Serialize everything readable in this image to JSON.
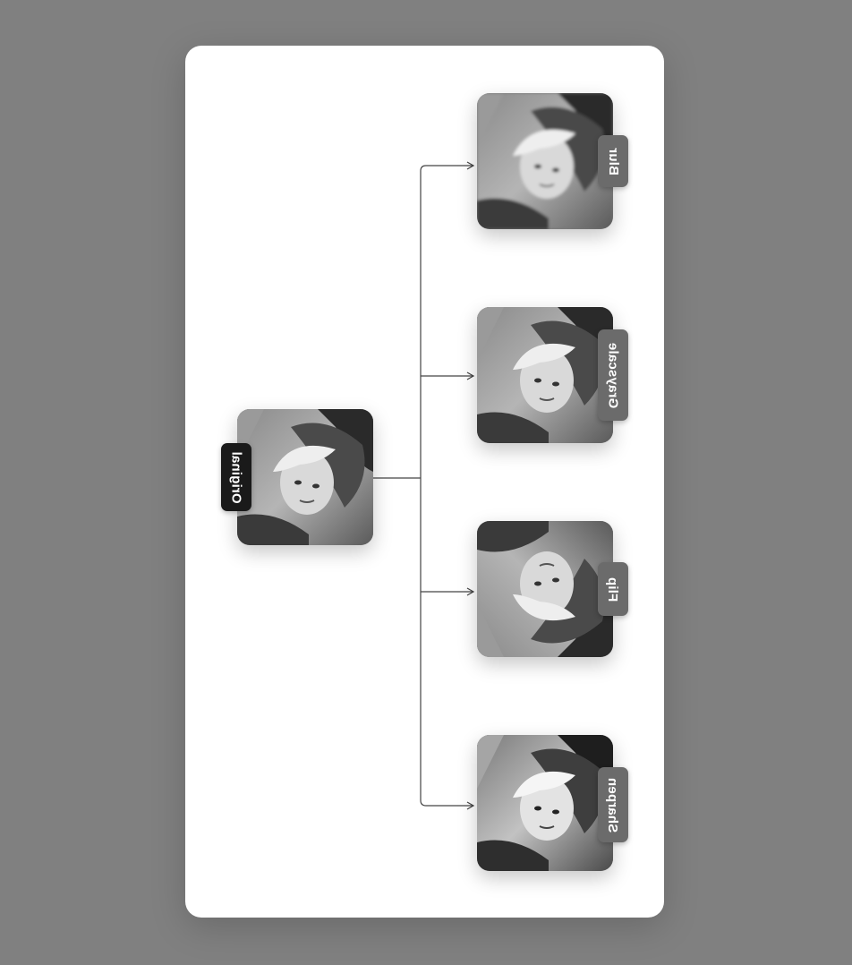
{
  "diagram": {
    "source": {
      "label": "Original",
      "image_icon": "portrait-photo-thumbnail"
    },
    "outputs": [
      {
        "label": "Blur",
        "image_icon": "portrait-photo-thumbnail-blurred"
      },
      {
        "label": "Grayscale",
        "image_icon": "portrait-photo-thumbnail-grayscale"
      },
      {
        "label": "Flip",
        "image_icon": "portrait-photo-thumbnail-flipped"
      },
      {
        "label": "Sharpen",
        "image_icon": "portrait-photo-thumbnail-sharpened"
      }
    ]
  },
  "colors": {
    "background": "#808080",
    "panel": "#ffffff",
    "source_label_bg": "#1a1a1a",
    "output_label_bg": "#6b6b6b",
    "connector": "#444444"
  }
}
